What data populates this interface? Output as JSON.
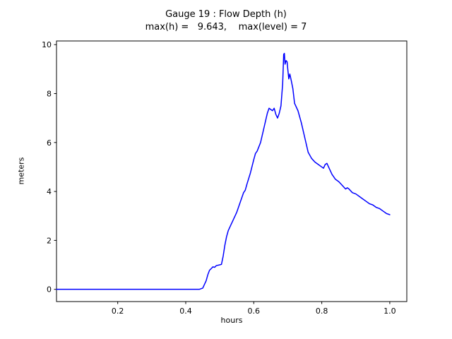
{
  "figure": {
    "background": "#ffffff"
  },
  "chart_data": {
    "type": "line",
    "title": "Gauge 19 : Flow Depth (h)",
    "subtitle": "max(h) =   9.643,    max(level) = 7",
    "xlabel": "hours",
    "ylabel": "meters",
    "xlim": [
      0.02,
      1.05
    ],
    "ylim": [
      -0.5,
      10.15
    ],
    "grid": false,
    "legend": "none",
    "line_color": "#0000ff",
    "axis_color": "#000000",
    "xticks": [
      {
        "v": 0.2,
        "label": "0.2"
      },
      {
        "v": 0.4,
        "label": "0.4"
      },
      {
        "v": 0.6,
        "label": "0.6"
      },
      {
        "v": 0.8,
        "label": "0.8"
      },
      {
        "v": 1.0,
        "label": "1.0"
      }
    ],
    "yticks": [
      {
        "v": 0,
        "label": "0"
      },
      {
        "v": 2,
        "label": "2"
      },
      {
        "v": 4,
        "label": "4"
      },
      {
        "v": 6,
        "label": "6"
      },
      {
        "v": 8,
        "label": "8"
      },
      {
        "v": 10,
        "label": "10"
      }
    ],
    "series": [
      {
        "name": "flow-depth-h",
        "x": [
          0.02,
          0.1,
          0.2,
          0.3,
          0.4,
          0.44,
          0.45,
          0.46,
          0.465,
          0.47,
          0.475,
          0.48,
          0.485,
          0.49,
          0.5,
          0.505,
          0.51,
          0.515,
          0.52,
          0.525,
          0.53,
          0.54,
          0.55,
          0.56,
          0.57,
          0.575,
          0.58,
          0.59,
          0.6,
          0.605,
          0.61,
          0.62,
          0.63,
          0.64,
          0.645,
          0.65,
          0.655,
          0.66,
          0.665,
          0.67,
          0.675,
          0.68,
          0.685,
          0.688,
          0.69,
          0.692,
          0.695,
          0.698,
          0.7,
          0.703,
          0.706,
          0.71,
          0.715,
          0.72,
          0.73,
          0.74,
          0.75,
          0.76,
          0.77,
          0.78,
          0.79,
          0.8,
          0.805,
          0.81,
          0.815,
          0.82,
          0.83,
          0.84,
          0.85,
          0.86,
          0.87,
          0.875,
          0.88,
          0.89,
          0.9,
          0.91,
          0.92,
          0.93,
          0.94,
          0.95,
          0.96,
          0.97,
          0.98,
          0.99,
          1.0
        ],
        "y": [
          0,
          0,
          0,
          0,
          0,
          0,
          0.05,
          0.35,
          0.6,
          0.78,
          0.85,
          0.92,
          0.9,
          0.97,
          1.0,
          1.02,
          1.35,
          1.8,
          2.15,
          2.4,
          2.55,
          2.85,
          3.15,
          3.55,
          3.95,
          4.05,
          4.3,
          4.75,
          5.3,
          5.55,
          5.65,
          6.0,
          6.6,
          7.2,
          7.4,
          7.35,
          7.3,
          7.4,
          7.15,
          7.0,
          7.2,
          7.5,
          8.4,
          9.6,
          9.643,
          9.2,
          9.35,
          9.3,
          9.0,
          8.6,
          8.8,
          8.55,
          8.2,
          7.6,
          7.3,
          6.8,
          6.2,
          5.6,
          5.35,
          5.2,
          5.1,
          5.0,
          4.95,
          5.1,
          5.15,
          5.0,
          4.7,
          4.5,
          4.4,
          4.25,
          4.1,
          4.15,
          4.1,
          3.95,
          3.9,
          3.8,
          3.7,
          3.6,
          3.5,
          3.45,
          3.35,
          3.3,
          3.2,
          3.1,
          3.05
        ]
      }
    ],
    "max_h": 9.643,
    "max_level": 7,
    "gauge": 19
  }
}
